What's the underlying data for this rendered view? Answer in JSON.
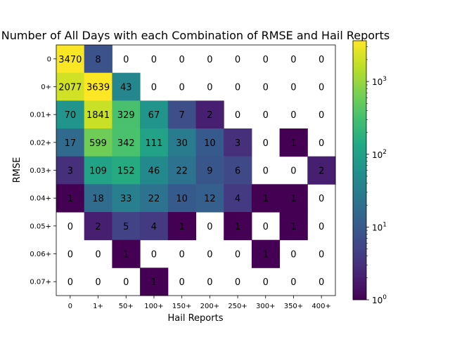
{
  "chart_data": {
    "type": "heatmap",
    "title": "Number of All Days with each Combination of RMSE and Hail Reports",
    "xlabel": "Hail Reports",
    "ylabel": "RMSE",
    "x_categories": [
      "0",
      "1+",
      "50+",
      "100+",
      "150+",
      "200+",
      "250+",
      "300+",
      "350+",
      "400+"
    ],
    "y_categories": [
      "0",
      "0+",
      "0.01+",
      "0.02+",
      "0.03+",
      "0.04+",
      "0.05+",
      "0.06+",
      "0.07+"
    ],
    "values": [
      [
        3470,
        8,
        0,
        0,
        0,
        0,
        0,
        0,
        0,
        0
      ],
      [
        2077,
        3639,
        43,
        0,
        0,
        0,
        0,
        0,
        0,
        0
      ],
      [
        70,
        1841,
        329,
        67,
        7,
        2,
        0,
        0,
        0,
        0
      ],
      [
        17,
        599,
        342,
        111,
        30,
        10,
        3,
        0,
        1,
        0
      ],
      [
        3,
        109,
        152,
        46,
        22,
        9,
        6,
        0,
        0,
        2
      ],
      [
        1,
        18,
        33,
        22,
        10,
        12,
        4,
        1,
        1,
        0
      ],
      [
        0,
        2,
        5,
        4,
        1,
        0,
        1,
        0,
        1,
        0
      ],
      [
        0,
        0,
        1,
        0,
        0,
        0,
        0,
        1,
        0,
        0
      ],
      [
        0,
        0,
        0,
        1,
        0,
        0,
        0,
        0,
        0,
        0
      ]
    ],
    "colorscale": "viridis",
    "color_scale_type": "log",
    "color_range": [
      1,
      3639
    ],
    "colorbar_ticks": [
      {
        "value": 1,
        "base": "10",
        "exp": "0"
      },
      {
        "value": 10,
        "base": "10",
        "exp": "1"
      },
      {
        "value": 100,
        "base": "10",
        "exp": "2"
      },
      {
        "value": 1000,
        "base": "10",
        "exp": "3"
      }
    ],
    "zero_cells": "blank"
  }
}
